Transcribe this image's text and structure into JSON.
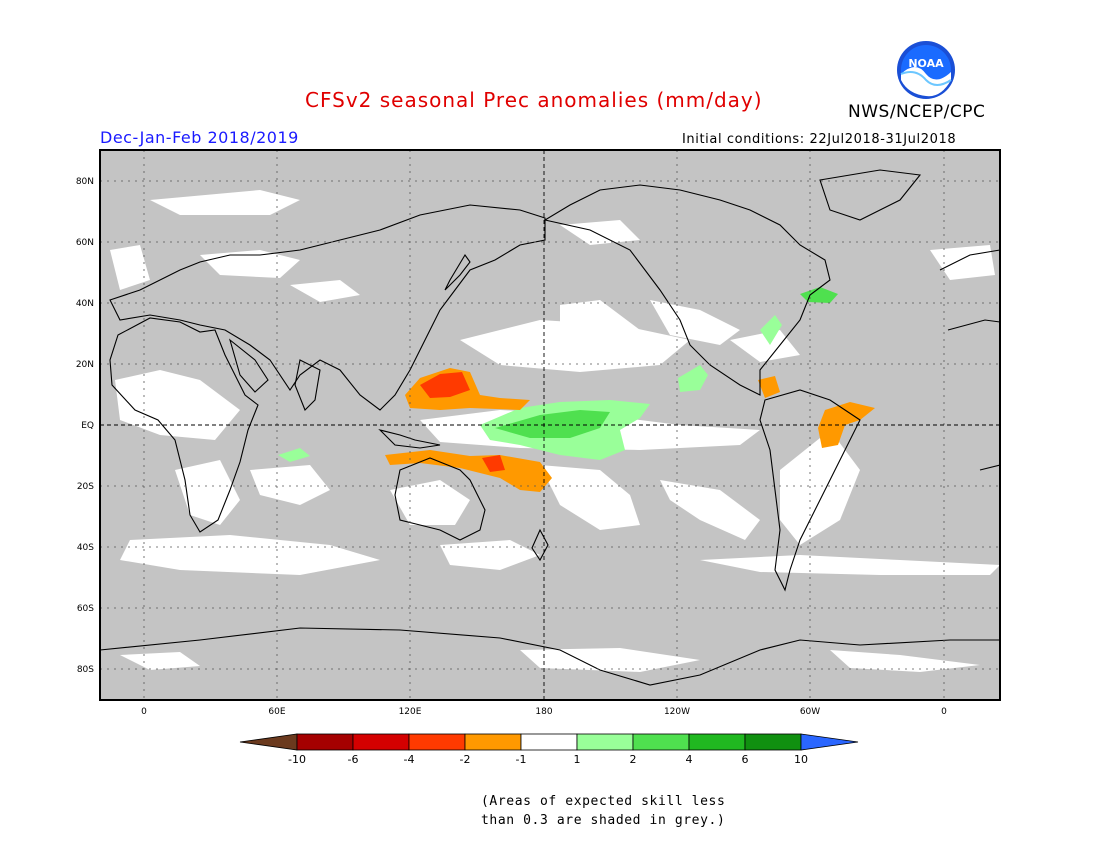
{
  "header": {
    "title": "CFSv2 seasonal Prec anomalies (mm/day)",
    "agency": "NWS/NCEP/CPC",
    "logo_text": "NOAA",
    "season": "Dec-Jan-Feb 2018/2019",
    "initial_conditions": "Initial conditions: 22Jul2018-31Jul2018"
  },
  "map": {
    "lat_labels": [
      "80N",
      "60N",
      "40N",
      "20N",
      "EQ",
      "20S",
      "40S",
      "60S",
      "80S"
    ],
    "lon_labels": [
      "0",
      "60E",
      "120E",
      "180",
      "120W",
      "60W",
      "0"
    ],
    "colors": {
      "grey": "#c4c4c4",
      "white": "#ffffff",
      "coast": "#000000"
    }
  },
  "colorbar": {
    "tick_labels": [
      "-10",
      "-6",
      "-4",
      "-2",
      "-1",
      "1",
      "2",
      "4",
      "6",
      "10"
    ],
    "colors": [
      "#6b3a1e",
      "#a50000",
      "#d40000",
      "#ff3a00",
      "#ff9900",
      "#ffffff",
      "#99ff99",
      "#4fe04f",
      "#20b820",
      "#109010",
      "#2a66ff"
    ]
  },
  "note": {
    "line1": "(Areas of expected skill less",
    "line2": "than 0.3 are shaded in grey.)"
  }
}
